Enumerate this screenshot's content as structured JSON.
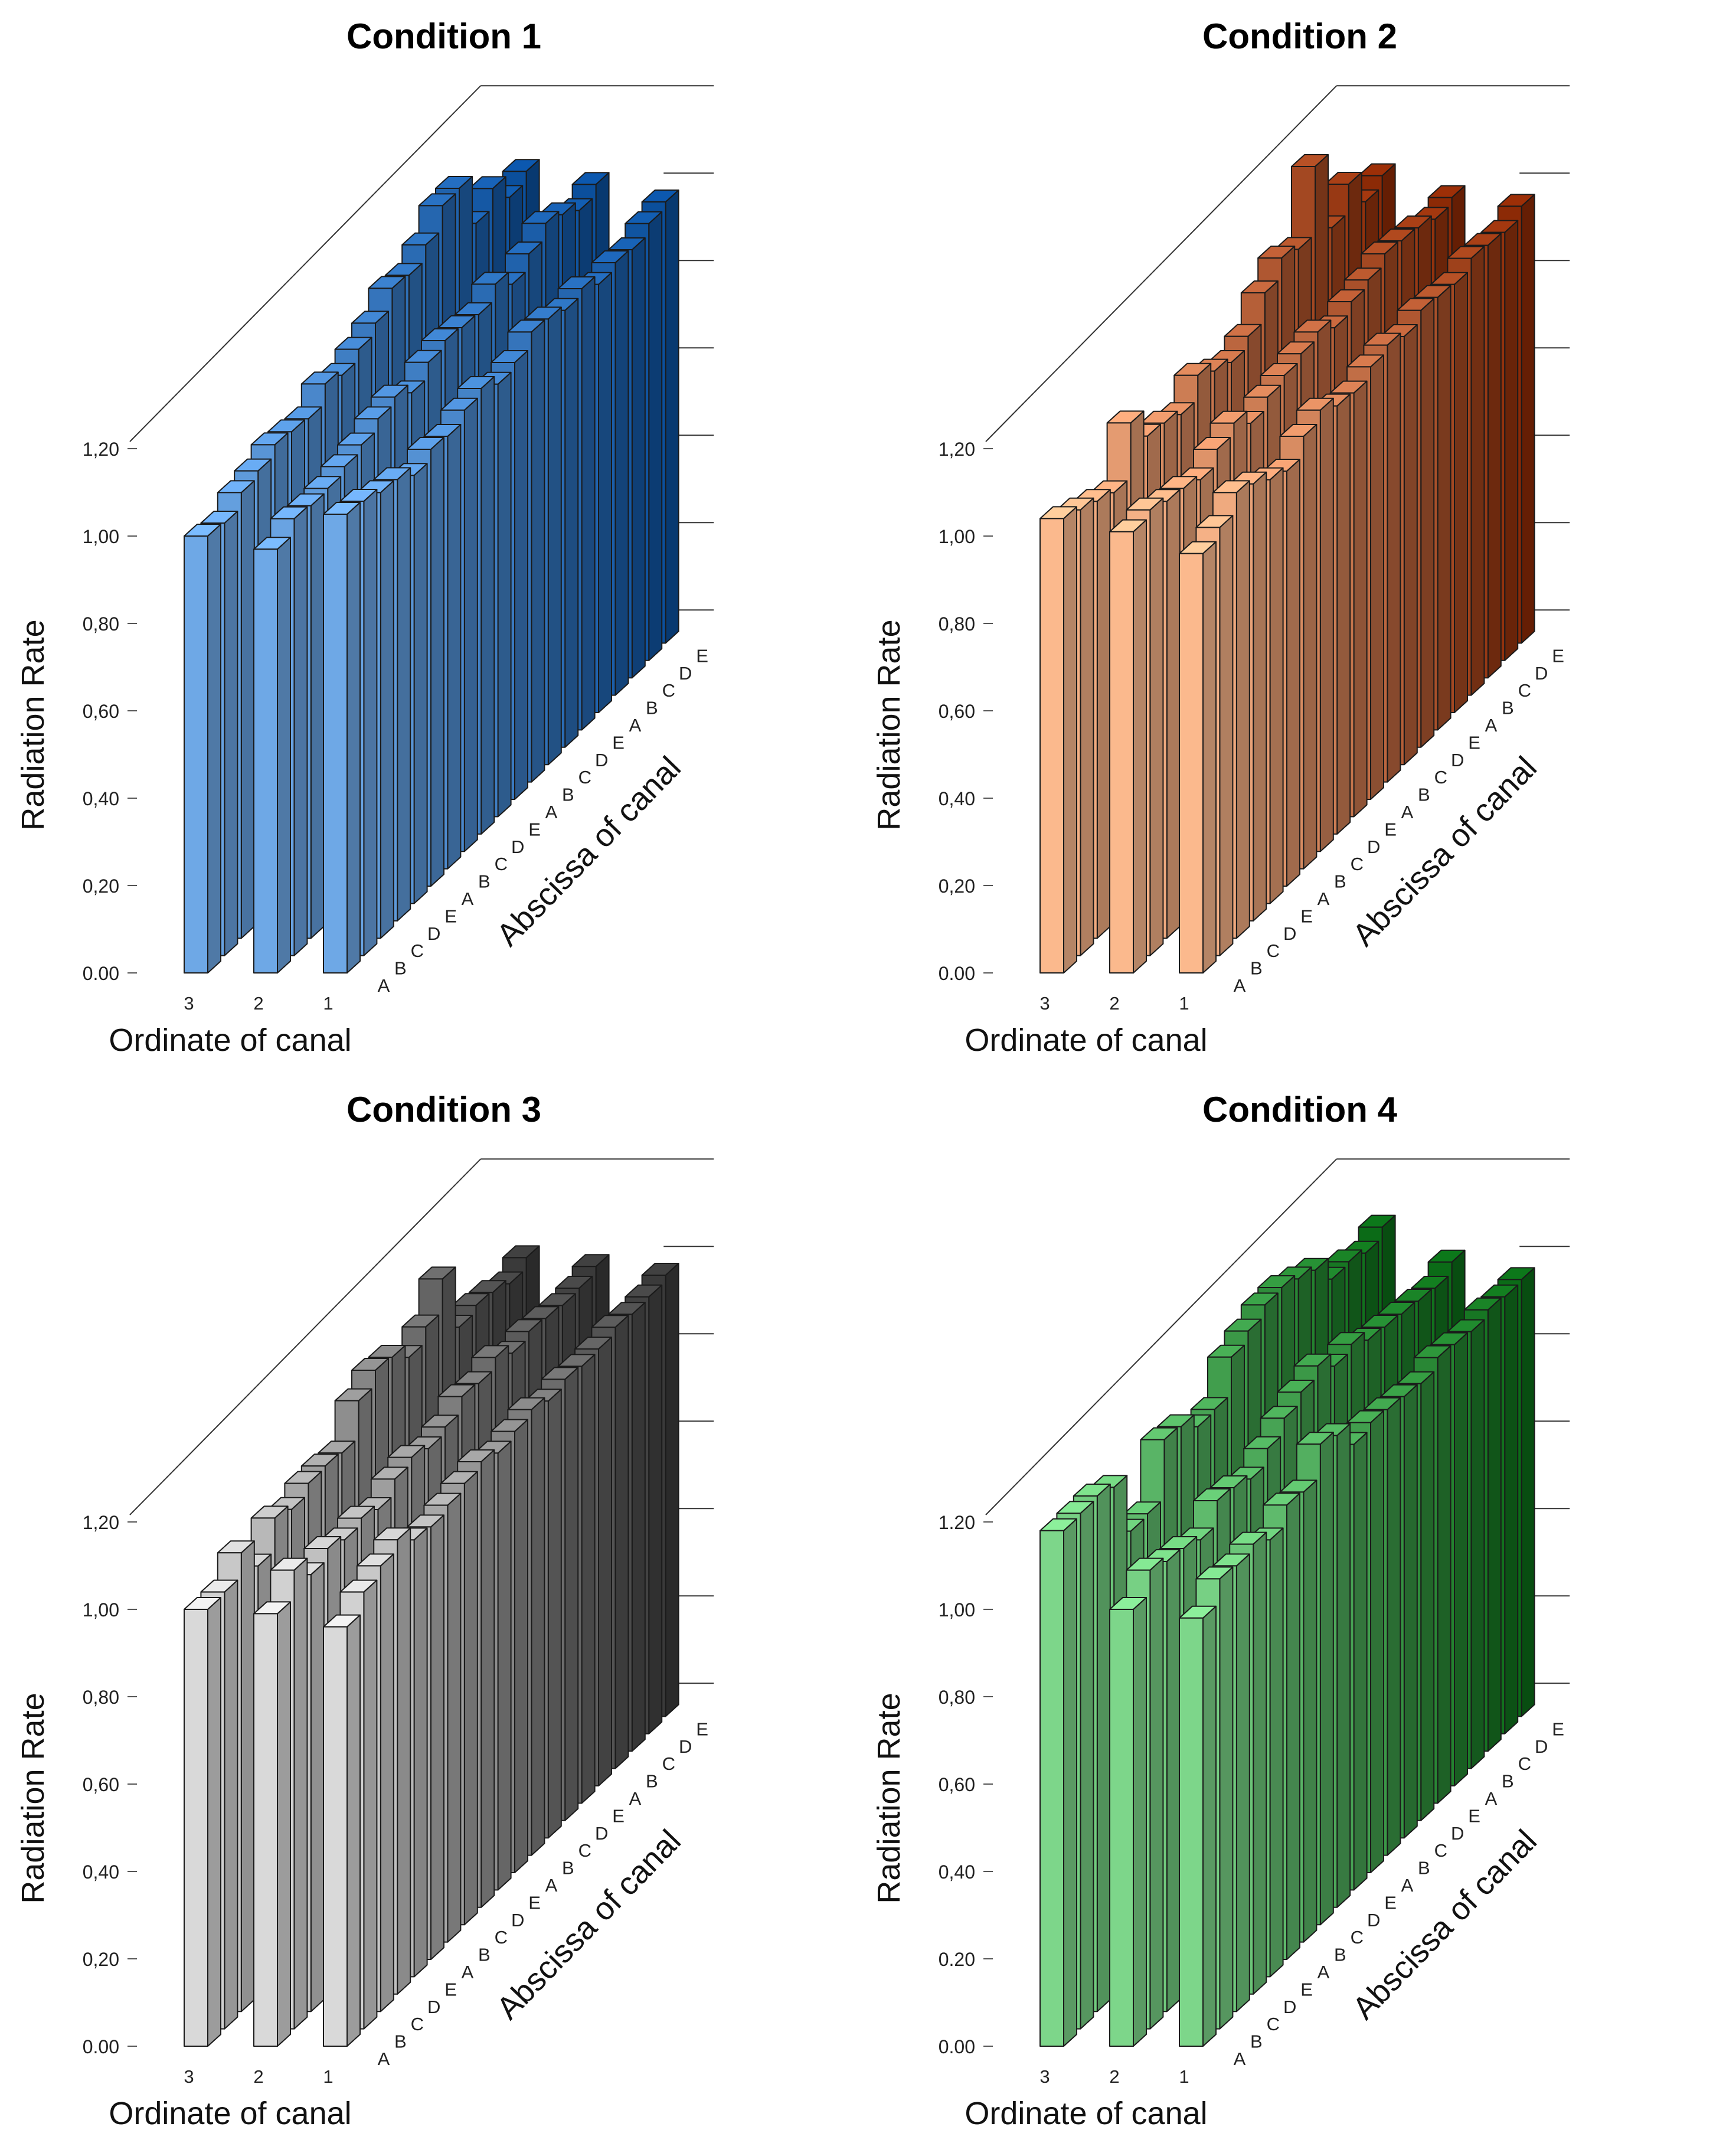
{
  "chart_data": [
    {
      "type": "bar3d",
      "title": "Condition 1",
      "ylabel": "Radiation Rate",
      "xlabel": "Abscissa of canal",
      "zlabel": "Ordinate of canal",
      "yticks": [
        "0.00",
        "0,20",
        "0,40",
        "0,60",
        "0,80",
        "1,00",
        "1,20"
      ],
      "ylim": [
        0,
        1.2
      ],
      "ordinates": [
        "3",
        "2",
        "1"
      ],
      "abscissa": [
        "A",
        "B",
        "C",
        "D",
        "E",
        "A",
        "B",
        "C",
        "D",
        "E",
        "A",
        "B",
        "C",
        "D",
        "E",
        "A",
        "B",
        "C",
        "D",
        "E"
      ],
      "series": [
        {
          "name": "3",
          "values": [
            1.0,
            0.99,
            1.02,
            1.03,
            1.05,
            1.04,
            1.03,
            1.07,
            1.05,
            1.07,
            1.09,
            1.13,
            1.12,
            1.15,
            1.2,
            1.2,
            1.08,
            1.12,
            1.06,
            1.08
          ]
        },
        {
          "name": "2",
          "values": [
            0.97,
            1.0,
            0.99,
            0.99,
            1.0,
            1.01,
            1.03,
            1.04,
            1.01,
            1.04,
            1.05,
            1.04,
            1.03,
            1.06,
            1.02,
            1.05,
            1.08,
            1.06,
            1.03,
            1.05
          ]
        },
        {
          "name": "1",
          "values": [
            1.05,
            1.04,
            1.02,
            1.01,
            0.98,
            1.0,
            0.99,
            1.01,
            1.02,
            0.99,
            1.0,
            1.03,
            1.02,
            1.0,
            1.01,
            0.98,
            0.99,
            0.98,
            1.0,
            1.01
          ]
        }
      ],
      "colors": {
        "front": "#6ea8e6",
        "back": "#0b4f9c"
      }
    },
    {
      "type": "bar3d",
      "title": "Condition 2",
      "ylabel": "Radiation Rate",
      "xlabel": "Abscissa of canal",
      "zlabel": "Ordinate of canal",
      "yticks": [
        "0.00",
        "0,20",
        "0,40",
        "0,60",
        "0,80",
        "1,00",
        "1,20"
      ],
      "ylim": [
        0,
        1.2
      ],
      "ordinates": [
        "3",
        "2",
        "1"
      ],
      "abscissa": [
        "A",
        "B",
        "C",
        "D",
        "E",
        "A",
        "B",
        "C",
        "D",
        "E",
        "A",
        "B",
        "C",
        "D",
        "E",
        "A",
        "B",
        "C",
        "D",
        "E"
      ],
      "series": [
        {
          "name": "3",
          "values": [
            1.04,
            1.02,
            1.0,
            0.98,
            1.1,
            1.03,
            1.02,
            1.0,
            1.05,
            1.02,
            1.0,
            1.02,
            1.08,
            1.12,
            1.1,
            1.25,
            1.07,
            1.13,
            1.05,
            1.07
          ]
        },
        {
          "name": "2",
          "values": [
            1.01,
            1.02,
            1.0,
            0.99,
            0.97,
            1.0,
            1.02,
            0.98,
            1.0,
            1.01,
            1.02,
            1.03,
            1.0,
            1.02,
            1.03,
            1.05,
            1.04,
            1.03,
            1.01,
            1.02
          ]
        },
        {
          "name": "1",
          "values": [
            0.96,
            0.98,
            1.02,
            1.0,
            0.97,
            0.95,
            0.99,
            1.01,
            0.98,
            0.97,
            0.99,
            1.0,
            0.98,
            1.0,
            0.99,
            0.98,
            1.0,
            0.99,
            0.98,
            1.0
          ]
        }
      ],
      "colors": {
        "front": "#fbb98d",
        "back": "#8c2a06"
      }
    },
    {
      "type": "bar3d",
      "title": "Condition 3",
      "ylabel": "Radiation Rate",
      "xlabel": "Abscissa of canal",
      "zlabel": "Ordinate of canal",
      "yticks": [
        "0.00",
        "0,20",
        "0,40",
        "0,60",
        "0,80",
        "1,00",
        "1,20"
      ],
      "ylim": [
        0,
        1.2
      ],
      "ordinates": [
        "3",
        "2",
        "1"
      ],
      "abscissa": [
        "A",
        "B",
        "C",
        "D",
        "E",
        "A",
        "B",
        "C",
        "D",
        "E",
        "A",
        "B",
        "C",
        "D",
        "E",
        "A",
        "B",
        "C",
        "D",
        "E"
      ],
      "series": [
        {
          "name": "3",
          "values": [
            1.0,
            1.0,
            1.05,
            0.98,
            1.05,
            1.03,
            1.05,
            1.05,
            1.04,
            1.12,
            1.15,
            1.14,
            1.1,
            1.13,
            1.2,
            1.05,
            1.06,
            1.05,
            1.03,
            1.05
          ]
        },
        {
          "name": "2",
          "values": [
            0.99,
            1.05,
            1.0,
            1.02,
            1.0,
            1.01,
            0.99,
            1.02,
            1.03,
            1.01,
            1.02,
            1.05,
            1.04,
            1.06,
            1.03,
            1.04,
            1.03,
            1.02,
            1.02,
            1.03
          ]
        },
        {
          "name": "1",
          "values": [
            0.96,
            1.0,
            1.02,
            1.04,
            1.0,
            0.99,
            1.0,
            1.01,
            1.02,
            1.0,
            1.01,
            1.02,
            1.0,
            1.01,
            1.0,
            1.0,
            1.01,
            1.0,
            1.0,
            1.01
          ]
        }
      ],
      "colors": {
        "front": "#d9d9d9",
        "back": "#3a3a3a"
      }
    },
    {
      "type": "bar3d",
      "title": "Condition 4",
      "ylabel": "Radiation Rate",
      "xlabel": "Abscissa of canal",
      "zlabel": "Ordinate of canal",
      "yticks": [
        "0.00",
        "0.20",
        "0,40",
        "0,60",
        "0,80",
        "1,00",
        "1.20"
      ],
      "ylim": [
        0,
        1.2
      ],
      "ordinates": [
        "3",
        "2",
        "1"
      ],
      "abscissa": [
        "A",
        "B",
        "C",
        "D",
        "E",
        "A",
        "B",
        "C",
        "D",
        "E",
        "A",
        "B",
        "C",
        "D",
        "E",
        "A",
        "B",
        "C",
        "D",
        "E"
      ],
      "series": [
        {
          "name": "3",
          "values": [
            1.18,
            1.18,
            1.18,
            1.16,
            1.02,
            1.02,
            1.15,
            1.14,
            1.1,
            1.1,
            1.18,
            1.2,
            1.22,
            1.22,
            1.2,
            1.18,
            1.12,
            1.12,
            1.1,
            1.12
          ]
        },
        {
          "name": "2",
          "values": [
            1.0,
            1.05,
            1.03,
            1.02,
            1.0,
            1.05,
            1.04,
            1.02,
            1.05,
            1.08,
            1.1,
            1.12,
            1.08,
            1.09,
            1.06,
            1.05,
            1.04,
            1.03,
            1.02,
            1.04
          ]
        },
        {
          "name": "1",
          "values": [
            0.98,
            1.03,
            1.02,
            1.03,
            1.0,
            1.04,
            1.03,
            1.1,
            1.08,
            1.02,
            1.03,
            1.02,
            1.01,
            1.0,
            1.02,
            1.01,
            1.0,
            1.01,
            1.0,
            1.0
          ]
        }
      ],
      "colors": {
        "front": "#7dd68a",
        "back": "#0b6b17"
      }
    }
  ]
}
